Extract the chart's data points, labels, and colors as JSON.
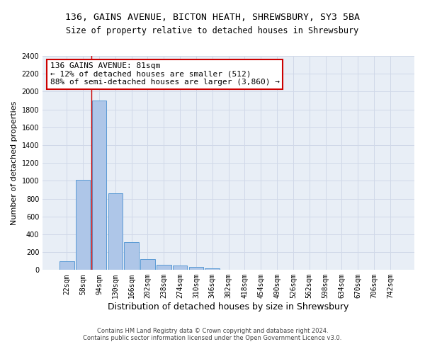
{
  "title_line1": "136, GAINS AVENUE, BICTON HEATH, SHREWSBURY, SY3 5BA",
  "title_line2": "Size of property relative to detached houses in Shrewsbury",
  "xlabel": "Distribution of detached houses by size in Shrewsbury",
  "ylabel": "Number of detached properties",
  "bar_labels": [
    "22sqm",
    "58sqm",
    "94sqm",
    "130sqm",
    "166sqm",
    "202sqm",
    "238sqm",
    "274sqm",
    "310sqm",
    "346sqm",
    "382sqm",
    "418sqm",
    "454sqm",
    "490sqm",
    "526sqm",
    "562sqm",
    "598sqm",
    "634sqm",
    "670sqm",
    "706sqm",
    "742sqm"
  ],
  "bar_values": [
    100,
    1010,
    1900,
    860,
    315,
    120,
    58,
    50,
    35,
    22,
    0,
    0,
    0,
    0,
    0,
    0,
    0,
    0,
    0,
    0,
    0
  ],
  "bar_color": "#aec6e8",
  "bar_edgecolor": "#5b9bd5",
  "vline_x": 1.5,
  "annotation_text": "136 GAINS AVENUE: 81sqm\n← 12% of detached houses are smaller (512)\n88% of semi-detached houses are larger (3,860) →",
  "annotation_box_color": "#ffffff",
  "annotation_box_edgecolor": "#cc0000",
  "vline_color": "#cc0000",
  "ylim_max": 2400,
  "yticks": [
    0,
    200,
    400,
    600,
    800,
    1000,
    1200,
    1400,
    1600,
    1800,
    2000,
    2200,
    2400
  ],
  "grid_color": "#d0d8e8",
  "background_color": "#e8eef6",
  "footer_line1": "Contains HM Land Registry data © Crown copyright and database right 2024.",
  "footer_line2": "Contains public sector information licensed under the Open Government Licence v3.0.",
  "title_fontsize": 9.5,
  "subtitle_fontsize": 8.5,
  "tick_fontsize": 7,
  "ylabel_fontsize": 8,
  "xlabel_fontsize": 9,
  "annotation_fontsize": 8,
  "footer_fontsize": 6
}
